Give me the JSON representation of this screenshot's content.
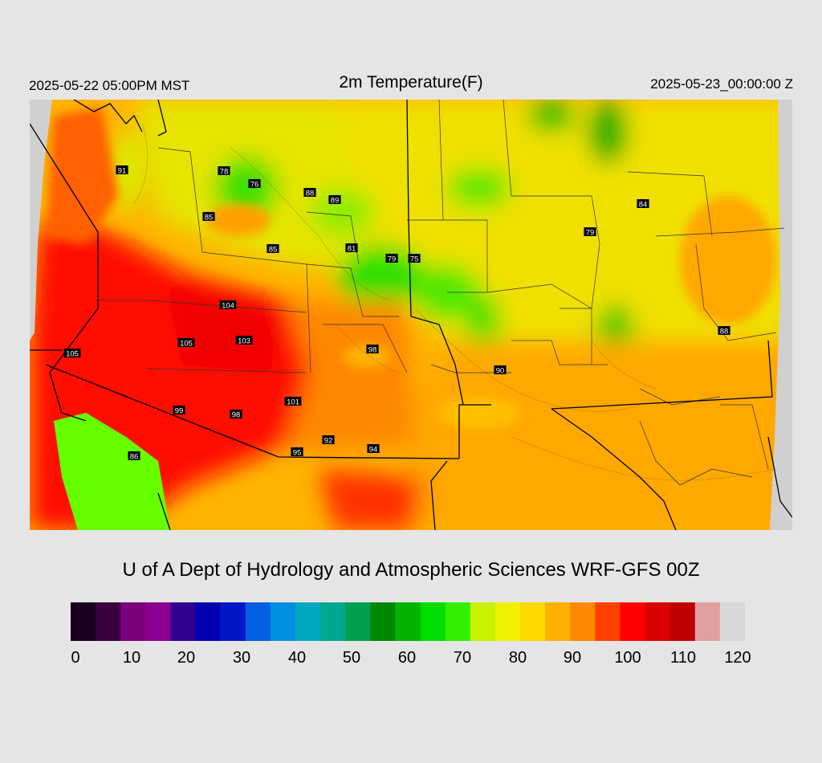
{
  "header": {
    "title": "2m Temperature(F)",
    "valid_local": "2025-05-22 05:00PM MST",
    "valid_utc": "2025-05-23_00:00:00 Z"
  },
  "credit": "U of A Dept of Hydrology and Atmospheric Sciences WRF-GFS 00Z",
  "stations": [
    {
      "id": "s1",
      "value": "91"
    },
    {
      "id": "s2",
      "value": "78"
    },
    {
      "id": "s3",
      "value": "76"
    },
    {
      "id": "s4",
      "value": "88"
    },
    {
      "id": "s5",
      "value": "89"
    },
    {
      "id": "s6",
      "value": "85"
    },
    {
      "id": "s7",
      "value": "85"
    },
    {
      "id": "s8",
      "value": "81"
    },
    {
      "id": "s9",
      "value": "79"
    },
    {
      "id": "s10",
      "value": "75"
    },
    {
      "id": "s11",
      "value": "84"
    },
    {
      "id": "s12",
      "value": "79"
    },
    {
      "id": "s13",
      "value": "104"
    },
    {
      "id": "s14",
      "value": "105"
    },
    {
      "id": "s15",
      "value": "103"
    },
    {
      "id": "s16",
      "value": "98"
    },
    {
      "id": "s17",
      "value": "105"
    },
    {
      "id": "s18",
      "value": "90"
    },
    {
      "id": "s19",
      "value": "88"
    },
    {
      "id": "s20",
      "value": "101"
    },
    {
      "id": "s21",
      "value": "99"
    },
    {
      "id": "s22",
      "value": "98"
    },
    {
      "id": "s23",
      "value": "92"
    },
    {
      "id": "s24",
      "value": "94"
    },
    {
      "id": "s25",
      "value": "95"
    },
    {
      "id": "s26",
      "value": "86"
    }
  ],
  "colorbar": {
    "ticks": [
      "0",
      "10",
      "20",
      "30",
      "40",
      "50",
      "60",
      "70",
      "80",
      "90",
      "100",
      "110",
      "120"
    ],
    "colors": [
      "#1a0020",
      "#3a0040",
      "#7b007b",
      "#8a0090",
      "#300090",
      "#0000b0",
      "#0018c8",
      "#0060e0",
      "#0090e0",
      "#00a8c0",
      "#00a890",
      "#00a050",
      "#008800",
      "#00b400",
      "#00dc00",
      "#30f000",
      "#c8f000",
      "#f0f000",
      "#ffd800",
      "#ffb000",
      "#ff8800",
      "#ff4000",
      "#ff0000",
      "#d80000",
      "#c00000",
      "#e0a0a0",
      "#d8d8d8"
    ]
  }
}
